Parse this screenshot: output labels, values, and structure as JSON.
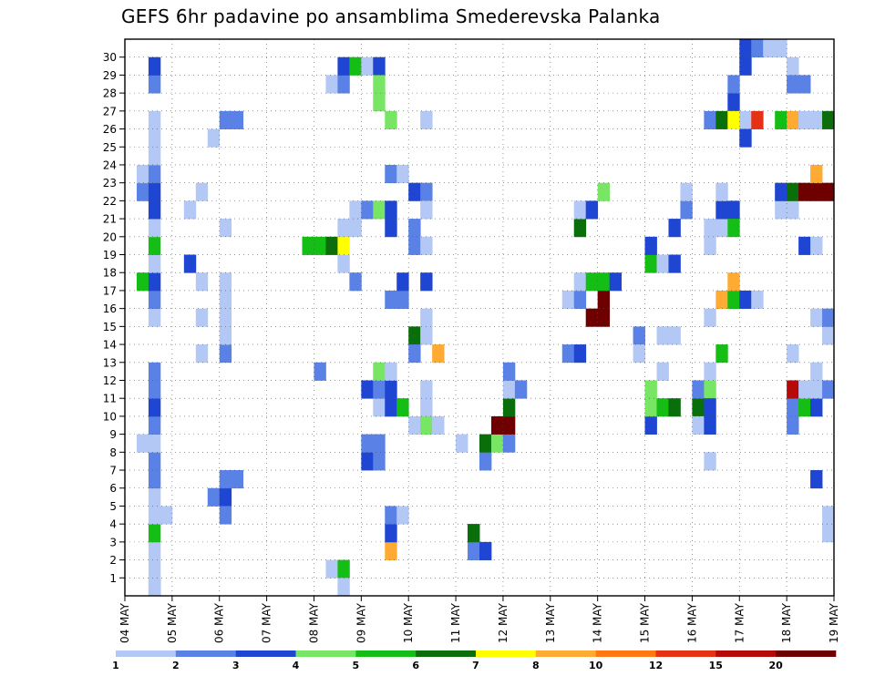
{
  "title": "GEFS 6hr padavine po ansamblima Smederevska Palanka",
  "chart_data": {
    "type": "heatmap",
    "title": "GEFS 6hr padavine po ansamblima Smederevska Palanka",
    "x_tick_labels": [
      "04 MAY",
      "05 MAY",
      "06 MAY",
      "07 MAY",
      "08 MAY",
      "09 MAY",
      "10 MAY",
      "11 MAY",
      "12 MAY",
      "13 MAY",
      "14 MAY",
      "15 MAY",
      "16 MAY",
      "17 MAY",
      "18 MAY",
      "19 MAY"
    ],
    "y_tick_labels": [
      "1",
      "2",
      "3",
      "4",
      "5",
      "6",
      "7",
      "8",
      "9",
      "10",
      "11",
      "12",
      "13",
      "14",
      "15",
      "16",
      "17",
      "18",
      "19",
      "20",
      "21",
      "22",
      "23",
      "24",
      "25",
      "26",
      "27",
      "28",
      "29",
      "30"
    ],
    "ylim": [
      0,
      30
    ],
    "x_step": "6h",
    "grid": true,
    "color_levels": [
      1,
      2,
      3,
      4,
      5,
      6,
      7,
      8,
      10,
      12,
      15,
      20
    ],
    "level_labels": [
      "1",
      "2",
      "3",
      "4",
      "5",
      "6",
      "7",
      "8",
      "10",
      "12",
      "15",
      "20"
    ],
    "colorbar_colors": [
      "#b4c8f5",
      "#5a82e6",
      "#1e46d2",
      "#78e664",
      "#14be14",
      "#0a6e0a",
      "#ffff00",
      "#ffaa32",
      "#ff7814",
      "#e63214",
      "#b40a0a",
      "#6e0000"
    ],
    "colorbar_position": "bottom",
    "cells": [
      [
        0,
        2,
        2
      ],
      [
        0,
        2,
        1
      ],
      [
        1,
        2,
        1
      ],
      [
        2,
        2,
        1
      ],
      [
        3,
        2,
        5
      ],
      [
        4,
        2,
        1
      ],
      [
        4,
        3,
        1
      ],
      [
        5,
        2,
        1
      ],
      [
        6,
        2,
        2
      ],
      [
        7,
        2,
        2
      ],
      [
        8,
        1,
        1
      ],
      [
        8,
        2,
        1
      ],
      [
        9,
        2,
        2
      ],
      [
        10,
        2,
        3
      ],
      [
        11,
        2,
        2
      ],
      [
        12,
        2,
        2
      ],
      [
        15,
        2,
        1
      ],
      [
        16,
        2,
        2
      ],
      [
        17,
        1,
        5
      ],
      [
        17,
        2,
        3
      ],
      [
        18,
        2,
        1
      ],
      [
        19,
        2,
        5
      ],
      [
        20,
        2,
        1
      ],
      [
        21,
        2,
        3
      ],
      [
        22,
        1,
        2
      ],
      [
        22,
        2,
        3
      ],
      [
        23,
        1,
        1
      ],
      [
        23,
        2,
        2
      ],
      [
        24,
        2,
        1
      ],
      [
        25,
        2,
        1
      ],
      [
        26,
        2,
        1
      ],
      [
        28,
        2,
        2
      ],
      [
        29,
        2,
        3
      ],
      [
        17,
        6,
        1
      ],
      [
        18,
        5,
        3
      ],
      [
        21,
        5,
        1
      ],
      [
        22,
        6,
        1
      ],
      [
        13,
        6,
        1
      ],
      [
        15,
        6,
        1
      ],
      [
        25,
        7,
        1
      ],
      [
        26,
        8,
        2
      ],
      [
        5,
        7,
        2
      ],
      [
        5,
        8,
        3
      ],
      [
        6,
        8,
        2
      ],
      [
        6,
        9,
        2
      ],
      [
        4,
        8,
        2
      ],
      [
        13,
        8,
        2
      ],
      [
        14,
        8,
        1
      ],
      [
        15,
        8,
        1
      ],
      [
        16,
        8,
        1
      ],
      [
        17,
        8,
        1
      ],
      [
        20,
        8,
        1
      ],
      [
        26,
        9,
        2
      ],
      [
        19,
        15,
        5
      ],
      [
        19,
        16,
        5
      ],
      [
        19,
        17,
        6
      ],
      [
        12,
        16,
        2
      ],
      [
        1,
        17,
        1
      ],
      [
        1,
        18,
        5
      ],
      [
        0,
        18,
        1
      ],
      [
        18,
        18,
        1
      ],
      [
        19,
        18,
        7
      ],
      [
        20,
        18,
        1
      ],
      [
        20,
        19,
        1
      ],
      [
        28,
        17,
        1
      ],
      [
        28,
        18,
        2
      ],
      [
        29,
        18,
        3
      ],
      [
        29,
        19,
        5
      ],
      [
        29,
        20,
        1
      ],
      [
        17,
        19,
        2
      ],
      [
        21,
        19,
        1
      ],
      [
        21,
        20,
        2
      ],
      [
        21,
        21,
        4
      ],
      [
        29,
        21,
        3
      ],
      [
        28,
        21,
        4
      ],
      [
        27,
        21,
        4
      ],
      [
        26,
        22,
        4
      ],
      [
        23,
        22,
        2
      ],
      [
        23,
        23,
        1
      ],
      [
        22,
        24,
        3
      ],
      [
        22,
        25,
        2
      ],
      [
        21,
        25,
        1
      ],
      [
        14,
        24,
        6
      ],
      [
        13,
        24,
        2
      ],
      [
        9,
        24,
        1
      ],
      [
        13,
        26,
        8
      ],
      [
        7,
        20,
        3
      ],
      [
        7,
        21,
        2
      ],
      [
        10,
        21,
        1
      ],
      [
        10,
        22,
        3
      ],
      [
        10,
        23,
        5
      ],
      [
        8,
        20,
        2
      ],
      [
        8,
        21,
        2
      ],
      [
        11,
        20,
        3
      ],
      [
        11,
        21,
        2
      ],
      [
        11,
        22,
        3
      ],
      [
        12,
        21,
        4
      ],
      [
        12,
        22,
        1
      ],
      [
        16,
        22,
        2
      ],
      [
        16,
        23,
        2
      ],
      [
        17,
        23,
        3
      ],
      [
        20,
        22,
        3
      ],
      [
        21,
        22,
        3
      ],
      [
        17,
        25,
        3
      ],
      [
        19,
        24,
        2
      ],
      [
        20,
        24,
        2
      ],
      [
        2,
        22,
        8
      ],
      [
        3,
        22,
        3
      ],
      [
        4,
        22,
        2
      ],
      [
        4,
        23,
        1
      ],
      [
        10,
        25,
        1
      ],
      [
        9,
        25,
        4
      ],
      [
        9,
        26,
        1
      ],
      [
        11,
        25,
        1
      ],
      [
        14,
        25,
        1
      ],
      [
        15,
        25,
        1
      ],
      [
        19,
        25,
        1
      ],
      [
        26,
        25,
        1
      ],
      [
        3,
        29,
        2
      ],
      [
        2,
        29,
        2
      ],
      [
        2,
        30,
        3
      ],
      [
        3,
        29,
        6
      ],
      [
        7,
        30,
        2
      ],
      [
        8,
        30,
        6
      ],
      [
        8,
        31,
        4
      ],
      [
        8,
        32,
        2
      ],
      [
        8,
        28,
        1
      ],
      [
        9,
        31,
        12
      ],
      [
        9,
        32,
        12
      ],
      [
        10,
        32,
        6
      ],
      [
        11,
        32,
        1
      ],
      [
        11,
        33,
        2
      ],
      [
        12,
        32,
        2
      ],
      [
        13,
        37,
        2
      ],
      [
        13,
        38,
        3
      ],
      [
        16,
        37,
        1
      ],
      [
        15,
        39,
        13
      ],
      [
        15,
        40,
        13
      ],
      [
        16,
        40,
        12
      ],
      [
        16,
        38,
        2
      ],
      [
        17,
        38,
        1
      ],
      [
        17,
        39,
        5
      ],
      [
        17,
        40,
        5
      ],
      [
        17,
        41,
        3
      ],
      [
        20,
        38,
        6
      ],
      [
        21,
        38,
        1
      ],
      [
        21,
        39,
        3
      ],
      [
        22,
        40,
        4
      ],
      [
        14,
        43,
        2
      ],
      [
        13,
        43,
        1
      ],
      [
        9,
        44,
        3
      ],
      [
        10,
        44,
        4
      ],
      [
        10,
        45,
        5
      ],
      [
        10,
        46,
        6
      ],
      [
        11,
        44,
        4
      ],
      [
        12,
        45,
        1
      ],
      [
        14,
        45,
        1
      ],
      [
        14,
        46,
        1
      ],
      [
        18,
        44,
        5
      ],
      [
        18,
        45,
        1
      ],
      [
        18,
        46,
        3
      ],
      [
        19,
        44,
        3
      ],
      [
        20,
        46,
        3
      ],
      [
        21,
        47,
        2
      ],
      [
        22,
        47,
        1
      ],
      [
        10,
        48,
        6
      ],
      [
        11,
        48,
        2
      ],
      [
        7,
        49,
        1
      ],
      [
        9,
        48,
        1
      ],
      [
        11,
        49,
        4
      ],
      [
        12,
        49,
        1
      ],
      [
        13,
        50,
        5
      ],
      [
        9,
        49,
        3
      ],
      [
        10,
        49,
        3
      ],
      [
        15,
        49,
        1
      ],
      [
        16,
        50,
        8
      ],
      [
        16,
        51,
        5
      ],
      [
        16,
        52,
        3
      ],
      [
        16,
        53,
        1
      ],
      [
        17,
        51,
        8
      ],
      [
        19,
        49,
        1
      ],
      [
        20,
        49,
        1
      ],
      [
        20,
        50,
        1
      ],
      [
        21,
        50,
        3
      ],
      [
        21,
        51,
        3
      ],
      [
        20,
        51,
        5
      ],
      [
        22,
        50,
        1
      ],
      [
        27,
        51,
        3
      ],
      [
        28,
        51,
        2
      ],
      [
        29,
        52,
        3
      ],
      [
        30,
        52,
        3
      ],
      [
        30,
        53,
        2
      ],
      [
        30,
        54,
        1
      ],
      [
        30,
        55,
        1
      ],
      [
        26,
        49,
        2
      ],
      [
        26,
        50,
        6
      ],
      [
        26,
        51,
        7
      ],
      [
        26,
        52,
        1
      ],
      [
        26,
        53,
        10
      ],
      [
        26,
        55,
        5
      ],
      [
        25,
        52,
        3
      ],
      [
        9,
        56,
        2
      ],
      [
        10,
        56,
        2
      ],
      [
        11,
        56,
        11
      ],
      [
        10,
        57,
        5
      ],
      [
        11,
        57,
        1
      ],
      [
        10,
        58,
        3
      ],
      [
        11,
        58,
        1
      ],
      [
        13,
        56,
        1
      ],
      [
        19,
        57,
        3
      ],
      [
        19,
        58,
        1
      ],
      [
        21,
        55,
        1
      ],
      [
        21,
        56,
        1
      ],
      [
        22,
        55,
        3
      ],
      [
        22,
        56,
        6
      ],
      [
        22,
        57,
        13
      ],
      [
        22,
        58,
        14
      ],
      [
        22,
        59,
        12
      ],
      [
        23,
        58,
        8
      ],
      [
        29,
        56,
        1
      ],
      [
        28,
        56,
        2
      ],
      [
        28,
        57,
        2
      ],
      [
        26,
        56,
        8
      ],
      [
        26,
        57,
        1
      ],
      [
        26,
        58,
        1
      ],
      [
        26,
        59,
        6
      ],
      [
        26,
        60,
        8
      ],
      [
        14,
        59,
        1
      ],
      [
        14,
        60,
        2
      ],
      [
        14,
        61,
        5
      ],
      [
        14,
        62,
        5
      ],
      [
        15,
        58,
        1
      ],
      [
        15,
        59,
        2
      ],
      [
        12,
        58,
        1
      ],
      [
        11,
        59,
        2
      ],
      [
        3,
        59,
        1
      ],
      [
        3,
        60,
        2
      ],
      [
        4,
        59,
        1
      ],
      [
        4,
        60,
        2
      ],
      [
        6,
        58,
        3
      ],
      [
        5,
        61,
        2
      ],
      [
        16,
        60,
        9
      ],
      [
        16,
        61,
        9
      ],
      [
        16,
        62,
        9
      ],
      [
        16,
        63,
        14
      ],
      [
        16,
        64,
        13
      ],
      [
        16,
        65,
        13
      ],
      [
        16,
        66,
        11
      ],
      [
        17,
        65,
        1
      ],
      [
        17,
        66,
        1
      ],
      [
        14,
        65,
        1
      ],
      [
        14,
        66,
        1
      ],
      [
        21,
        63,
        3
      ],
      [
        21,
        62,
        3
      ],
      [
        22,
        63,
        2
      ],
      [
        24,
        65,
        2
      ],
      [
        26,
        64,
        5
      ],
      [
        26,
        65,
        2
      ],
      [
        27,
        63,
        2
      ],
      [
        27,
        64,
        2
      ],
      [
        29,
        61,
        5
      ],
      [
        29,
        62,
        5
      ],
      [
        29,
        63,
        1
      ],
      [
        29,
        64,
        1
      ],
      [
        29,
        65,
        1
      ],
      [
        29,
        66,
        3
      ],
      [
        1,
        61,
        3
      ],
      [
        2,
        61,
        3
      ],
      [
        2,
        62,
        2
      ],
      [
        3,
        61,
        1
      ],
      [
        3,
        62,
        3
      ],
      [
        3,
        63,
        6
      ],
      [
        4,
        62,
        2
      ],
      [
        4,
        63,
        2
      ],
      [
        4,
        64,
        1
      ],
      [
        7,
        63,
        2
      ],
      [
        10,
        61,
        1
      ],
      [
        10,
        62,
        2
      ],
      [
        11,
        61,
        1
      ],
      [
        11,
        62,
        1
      ],
      [
        12,
        61,
        1
      ],
      [
        12,
        62,
        3
      ],
      [
        12,
        63,
        8
      ],
      [
        12,
        64,
        1
      ],
      [
        11,
        63,
        1
      ],
      [
        11,
        64,
        1
      ],
      [
        3,
        65,
        5
      ],
      [
        3,
        66,
        10
      ],
      [
        5,
        66,
        1
      ],
      [
        6,
        66,
        10
      ],
      [
        6,
        67,
        8
      ],
      [
        3,
        67,
        6
      ],
      [
        2,
        66,
        1
      ],
      [
        2,
        67,
        1
      ],
      [
        11,
        66,
        1
      ],
      [
        12,
        66,
        1
      ],
      [
        10,
        67,
        3
      ]
    ],
    "hidden_note": ""
  }
}
